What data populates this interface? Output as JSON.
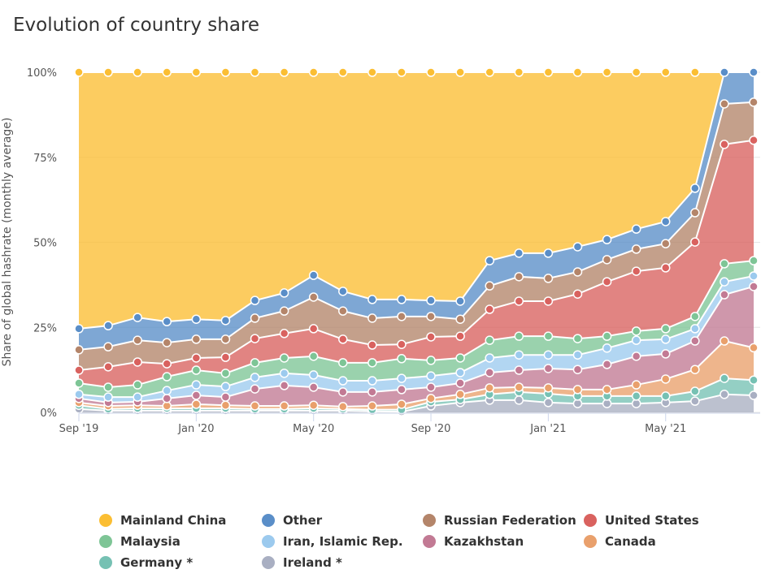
{
  "chart_data": {
    "type": "area",
    "stacked": true,
    "title": "Evolution of country share",
    "xlabel": "",
    "ylabel": "Share of global hashrate (monthly average)",
    "ylim": [
      0,
      100
    ],
    "y_ticks": [
      "0%",
      "25%",
      "50%",
      "75%",
      "100%"
    ],
    "y_tick_values": [
      0,
      25,
      50,
      75,
      100
    ],
    "x_tick_labels": [
      "Sep '19",
      "Jan '20",
      "May '20",
      "Sep '20",
      "Jan '21",
      "May '21"
    ],
    "x_tick_indices": [
      0,
      4,
      8,
      12,
      16,
      20
    ],
    "x": [
      "2019-09",
      "2019-10",
      "2019-11",
      "2019-12",
      "2020-01",
      "2020-02",
      "2020-03",
      "2020-04",
      "2020-05",
      "2020-06",
      "2020-07",
      "2020-08",
      "2020-09",
      "2020-10",
      "2020-11",
      "2020-12",
      "2021-01",
      "2021-02",
      "2021-03",
      "2021-04",
      "2021-05",
      "2021-06",
      "2021-07",
      "2021-08"
    ],
    "grid": true,
    "legend_position": "bottom",
    "series": [
      {
        "name": "Ireland *",
        "color": "#a9afc2",
        "values": [
          1.0,
          0.5,
          0.5,
          0.5,
          0.5,
          0.5,
          0.5,
          0.5,
          0.5,
          0.5,
          0.3,
          0.2,
          1.9,
          2.9,
          3.6,
          3.6,
          2.9,
          2.6,
          2.6,
          2.6,
          2.9,
          3.3,
          5.3,
          5.0
        ]
      },
      {
        "name": "Germany *",
        "color": "#76c1b3",
        "values": [
          1.1,
          0.5,
          0.7,
          0.7,
          0.7,
          0.7,
          0.5,
          0.5,
          0.7,
          0.5,
          0.5,
          0.6,
          1.2,
          0.9,
          1.7,
          2.4,
          2.6,
          2.2,
          2.2,
          2.2,
          1.9,
          2.9,
          4.7,
          4.5
        ]
      },
      {
        "name": "Canada",
        "color": "#e9a06c",
        "values": [
          0.8,
          0.9,
          0.9,
          0.7,
          1.2,
          0.9,
          0.9,
          0.9,
          0.9,
          0.7,
          1.1,
          1.6,
          1.0,
          1.5,
          1.9,
          1.4,
          1.7,
          1.9,
          1.9,
          3.3,
          5.0,
          6.4,
          11.0,
          9.5
        ]
      },
      {
        "name": "Kazakhstan",
        "color": "#c27a94",
        "values": [
          1.2,
          1.0,
          1.0,
          2.2,
          2.6,
          2.4,
          5.0,
          6.0,
          5.3,
          4.3,
          4.1,
          4.3,
          3.3,
          3.3,
          4.5,
          5.0,
          5.7,
          5.9,
          7.4,
          8.4,
          7.4,
          8.4,
          13.6,
          18.0
        ]
      },
      {
        "name": "Iran, Islamic Rep.",
        "color": "#9ccaee",
        "values": [
          1.2,
          1.6,
          1.4,
          2.3,
          3.1,
          3.1,
          3.4,
          3.6,
          3.6,
          3.3,
          3.3,
          3.3,
          3.3,
          3.1,
          4.3,
          4.5,
          4.0,
          4.3,
          4.8,
          4.7,
          4.3,
          3.6,
          3.8,
          3.1
        ]
      },
      {
        "name": "Malaysia",
        "color": "#7ec596",
        "values": [
          3.3,
          2.9,
          3.6,
          4.1,
          4.3,
          3.9,
          4.3,
          4.5,
          5.5,
          5.3,
          5.3,
          5.8,
          4.6,
          4.3,
          5.2,
          5.5,
          5.5,
          4.8,
          3.5,
          2.7,
          3.1,
          3.6,
          5.3,
          4.5
        ]
      },
      {
        "name": "United States",
        "color": "#d9625f",
        "values": [
          3.8,
          6.0,
          6.7,
          3.8,
          3.6,
          4.7,
          7.1,
          7.2,
          8.1,
          6.9,
          5.2,
          4.2,
          6.9,
          6.4,
          9.1,
          10.3,
          10.3,
          13.1,
          16.0,
          17.6,
          17.9,
          21.9,
          35.1,
          35.4
        ]
      },
      {
        "name": "Russian Federation",
        "color": "#b4856a",
        "values": [
          6.0,
          5.9,
          6.4,
          6.2,
          5.5,
          5.3,
          6.0,
          6.6,
          9.3,
          8.3,
          7.9,
          8.2,
          6.0,
          5.0,
          6.9,
          7.2,
          6.7,
          6.5,
          6.5,
          6.5,
          7.1,
          8.6,
          11.9,
          11.2
        ]
      },
      {
        "name": "Other",
        "color": "#5a8ec8",
        "values": [
          6.2,
          6.2,
          6.7,
          6.2,
          5.9,
          5.5,
          5.2,
          5.3,
          6.4,
          5.8,
          5.5,
          5.0,
          4.7,
          5.3,
          7.4,
          6.9,
          7.4,
          7.4,
          5.9,
          5.9,
          6.5,
          7.2,
          9.3,
          8.8
        ]
      },
      {
        "name": "Mainland China",
        "color": "#fbbe33",
        "values": [
          75.4,
          74.5,
          72.1,
          73.3,
          72.6,
          73.0,
          67.1,
          64.9,
          59.7,
          64.4,
          66.8,
          66.8,
          67.1,
          67.3,
          55.4,
          53.2,
          53.2,
          51.3,
          49.2,
          46.1,
          43.9,
          34.1,
          null,
          null
        ]
      }
    ]
  },
  "legend": [
    {
      "label": "Mainland China",
      "color": "#fbbe33"
    },
    {
      "label": "Other",
      "color": "#5a8ec8"
    },
    {
      "label": "Russian Federation",
      "color": "#b4856a"
    },
    {
      "label": "United States",
      "color": "#d9625f"
    },
    {
      "label": "Malaysia",
      "color": "#7ec596"
    },
    {
      "label": "Iran, Islamic Rep.",
      "color": "#9ccaee"
    },
    {
      "label": "Kazakhstan",
      "color": "#c27a94"
    },
    {
      "label": "Canada",
      "color": "#e9a06c"
    },
    {
      "label": "Germany *",
      "color": "#76c1b3"
    },
    {
      "label": "Ireland *",
      "color": "#a9afc2"
    }
  ]
}
